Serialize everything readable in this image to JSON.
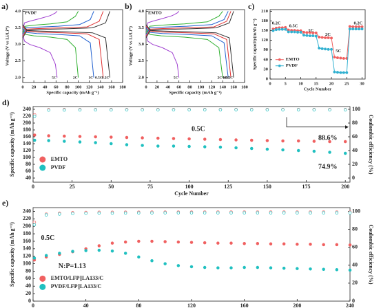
{
  "chart_data": [
    {
      "type": "line",
      "panel_label": "a)",
      "title": "PVDF",
      "x_label": "Specific capacity (mAh g⁻¹)",
      "y_label": "Voltage (V vs Li/Li⁺)",
      "xlim": [
        0,
        180
      ],
      "xticks": [
        0,
        20,
        40,
        60,
        80,
        100,
        120,
        140,
        160,
        180
      ],
      "ylim": [
        1.85,
        4.05
      ],
      "yticks": [
        {
          "value": 2,
          "label": "2.0"
        },
        2.5,
        {
          "value": 3,
          "label": "3.0"
        },
        3.5,
        {
          "value": 4,
          "label": "4.0"
        }
      ],
      "series": [
        {
          "name": "5C",
          "color": "#a040d0",
          "x": [
            0,
            3.1,
            12.4,
            31,
            49.6,
            58.9,
            62
          ],
          "charge": [
            3.4,
            3.65,
            3.7,
            3.78,
            3.87,
            3.95,
            4.0
          ],
          "discharge": [
            3.3,
            3.1,
            3.0,
            2.9,
            2.75,
            2.4,
            2.0
          ]
        },
        {
          "name": "2C",
          "color": "#30b030",
          "x": [
            0,
            5,
            20,
            50,
            80,
            95,
            100
          ],
          "charge": [
            3.35,
            3.55,
            3.58,
            3.62,
            3.68,
            3.85,
            4.0
          ],
          "discharge": [
            3.45,
            3.3,
            3.26,
            3.22,
            3.15,
            2.9,
            2.0
          ]
        },
        {
          "name": "1C",
          "color": "#2060d0",
          "x": [
            0,
            6.4,
            25.6,
            64,
            102.4,
            121.6,
            128
          ],
          "charge": [
            3.3,
            3.5,
            3.52,
            3.55,
            3.6,
            3.75,
            4.0
          ],
          "discharge": [
            3.5,
            3.36,
            3.33,
            3.3,
            3.26,
            3.05,
            2.0
          ]
        },
        {
          "name": "0.5C",
          "color": "#e03030",
          "x": [
            0,
            7.3,
            29,
            72.5,
            116,
            137.8,
            145
          ],
          "charge": [
            3.25,
            3.46,
            3.48,
            3.5,
            3.53,
            3.7,
            4.0
          ],
          "discharge": [
            3.55,
            3.4,
            3.37,
            3.35,
            3.32,
            3.15,
            2.0
          ]
        },
        {
          "name": "0.2C",
          "color": "#333333",
          "x": [
            0,
            7.9,
            31.4,
            78.5,
            125.6,
            149.2,
            157
          ],
          "charge": [
            3.2,
            3.43,
            3.45,
            3.47,
            3.5,
            3.65,
            4.0
          ],
          "discharge": [
            3.6,
            3.42,
            3.4,
            3.38,
            3.35,
            3.2,
            2.0
          ]
        }
      ]
    },
    {
      "type": "line",
      "panel_label": "b)",
      "title": "EMTO",
      "x_label": "Specific capacity (mAh g⁻¹)",
      "y_label": "Voltage (V vs Li/Li⁺)",
      "xlim": [
        0,
        180
      ],
      "xticks": [
        0,
        20,
        40,
        60,
        80,
        100,
        120,
        140,
        160,
        180
      ],
      "ylim": [
        1.85,
        4.05
      ],
      "yticks": [
        {
          "value": 2,
          "label": "2.0"
        },
        2.5,
        {
          "value": 3,
          "label": "3.0"
        },
        3.5,
        {
          "value": 4,
          "label": "4.0"
        }
      ],
      "series": [
        {
          "name": "5C",
          "color": "#a040d0",
          "x": [
            0,
            3,
            12,
            30,
            48,
            57,
            60
          ],
          "charge": [
            3.4,
            3.65,
            3.7,
            3.78,
            3.87,
            3.95,
            4.0
          ],
          "discharge": [
            3.3,
            3.1,
            3.0,
            2.9,
            2.75,
            2.4,
            2.0
          ]
        },
        {
          "name": "2C",
          "color": "#30b030",
          "x": [
            0,
            7,
            28,
            70,
            112,
            133,
            140
          ],
          "charge": [
            3.35,
            3.55,
            3.58,
            3.62,
            3.68,
            3.85,
            4.0
          ],
          "discharge": [
            3.45,
            3.3,
            3.26,
            3.22,
            3.15,
            2.9,
            2.0
          ]
        },
        {
          "name": "1C",
          "color": "#2060d0",
          "x": [
            0,
            7.5,
            30,
            75,
            120,
            142.5,
            150
          ],
          "charge": [
            3.3,
            3.5,
            3.52,
            3.55,
            3.6,
            3.75,
            4.0
          ],
          "discharge": [
            3.5,
            3.36,
            3.33,
            3.3,
            3.26,
            3.05,
            2.0
          ]
        },
        {
          "name": "0.5C",
          "color": "#e03030",
          "x": [
            0,
            7.8,
            31,
            77.5,
            124,
            147.3,
            155
          ],
          "charge": [
            3.25,
            3.46,
            3.48,
            3.5,
            3.53,
            3.7,
            4.0
          ],
          "discharge": [
            3.55,
            3.4,
            3.37,
            3.35,
            3.32,
            3.15,
            2.0
          ]
        },
        {
          "name": "0.2C",
          "color": "#333333",
          "x": [
            0,
            8,
            32,
            80,
            128,
            152,
            160
          ],
          "charge": [
            3.2,
            3.43,
            3.45,
            3.47,
            3.5,
            3.65,
            4.0
          ],
          "discharge": [
            3.6,
            3.42,
            3.4,
            3.38,
            3.35,
            3.2,
            2.0
          ]
        }
      ]
    },
    {
      "type": "line",
      "panel_label": "c)",
      "x_label": "Cycle Number",
      "y_label": "Specific capacity(mAh g⁻¹)",
      "xlim": [
        0,
        31
      ],
      "xticks": [
        0,
        5,
        10,
        15,
        20,
        25,
        30
      ],
      "ylim": [
        0,
        215
      ],
      "yticks": [
        0,
        30,
        60,
        90,
        120,
        150,
        180,
        210
      ],
      "x": [
        1,
        2,
        3,
        4,
        5,
        6,
        7,
        8,
        9,
        10,
        11,
        12,
        13,
        14,
        15,
        16,
        17,
        18,
        19,
        20,
        21,
        22,
        23,
        24,
        25,
        26,
        27,
        28,
        29,
        30
      ],
      "legend": true,
      "annotations": [
        "0.2C",
        "0.5C",
        "1C",
        "2C",
        "5C",
        "0.2C"
      ],
      "series": [
        {
          "name": "EMTO",
          "color": "#f06060",
          "marker": "circle",
          "values": [
            155,
            158,
            159,
            159,
            160,
            152,
            151,
            151,
            150,
            150,
            145,
            144,
            144,
            143,
            143,
            130,
            129,
            128,
            128,
            127,
            68,
            66,
            65,
            64,
            64,
            163,
            162,
            162,
            162,
            162
          ]
        },
        {
          "name": "PVDF",
          "color": "#30b0d0",
          "marker": "circle",
          "values": [
            150,
            153,
            154,
            154,
            154,
            146,
            146,
            146,
            145,
            145,
            136,
            135,
            134,
            134,
            133,
            96,
            94,
            93,
            92,
            92,
            22,
            21,
            20,
            20,
            20,
            155,
            155,
            155,
            155,
            155
          ]
        }
      ]
    },
    {
      "type": "line",
      "panel_label": "d)",
      "x_label": "Cycle Number",
      "y_label": "Specific capacity (mAh g⁻¹)",
      "y2_label": "Coulombic efficiency (%)",
      "xlim": [
        0,
        203
      ],
      "xticks": [
        0,
        25,
        50,
        75,
        100,
        125,
        150,
        175,
        200
      ],
      "ylim": [
        28,
        248
      ],
      "yticks": [
        40,
        60,
        80,
        100,
        120,
        140,
        160,
        180,
        200,
        220,
        240
      ],
      "y2lim": [
        -6,
        104
      ],
      "y2ticks": [
        0,
        20,
        40,
        60,
        80,
        100
      ],
      "x": [
        1,
        10,
        20,
        30,
        40,
        50,
        60,
        70,
        80,
        90,
        100,
        110,
        120,
        130,
        140,
        150,
        160,
        170,
        180,
        190,
        200
      ],
      "legend": true,
      "annotations": [
        "0.5C",
        "88.6%",
        "74.9%"
      ],
      "series": [
        {
          "name": "EMTO",
          "color": "#f06060",
          "marker": "circle",
          "line": false,
          "values": [
            165,
            163,
            162,
            161,
            160,
            159,
            158,
            157,
            156,
            155,
            154,
            153,
            152,
            151,
            150,
            149,
            148,
            148,
            147,
            146,
            146
          ]
        },
        {
          "name": "PVDF",
          "color": "#20c0c0",
          "marker": "circle",
          "line": false,
          "values": [
            150,
            149,
            147,
            145,
            143,
            140,
            137,
            135,
            133,
            133,
            132,
            131,
            130,
            128,
            126,
            124,
            122,
            120,
            118,
            115,
            112
          ]
        },
        {
          "color": "#f06060",
          "marker": "open-circle",
          "line": false,
          "axis": "y2",
          "values": [
            92,
            99.5,
            99.6,
            99.6,
            99.6,
            99.7,
            99.7,
            99.7,
            99.7,
            99.7,
            99.8,
            99.8,
            99.8,
            99.8,
            99.8,
            99.8,
            99.8,
            99.8,
            99.8,
            99.8,
            99.8
          ]
        },
        {
          "color": "#20c0c0",
          "marker": "open-circle",
          "line": false,
          "axis": "y2",
          "values": [
            90,
            98.8,
            99,
            99.1,
            99.2,
            99.2,
            99.3,
            99.3,
            99.3,
            99.3,
            99.4,
            99.4,
            99.4,
            99.4,
            99.4,
            99.4,
            99.4,
            99.4,
            99.4,
            99.4,
            99.4
          ]
        }
      ]
    },
    {
      "type": "line",
      "panel_label": "e)",
      "x_label": "Cycle Number",
      "y_label": "Specific capacity (mAh g⁻¹)",
      "y2_label": "Coulombic efficiency (%)",
      "xlim": [
        0,
        240
      ],
      "xticks": [
        0,
        40,
        80,
        120,
        160,
        200,
        240
      ],
      "ylim": [
        0,
        250
      ],
      "yticks": [
        0,
        20,
        40,
        60,
        80,
        100,
        120,
        140,
        160,
        180,
        200,
        220,
        240
      ],
      "y2lim": [
        0,
        104.17
      ],
      "y2ticks": [
        0,
        20,
        40,
        60,
        80,
        100
      ],
      "x": [
        1,
        10,
        20,
        30,
        40,
        50,
        60,
        70,
        80,
        90,
        100,
        110,
        120,
        130,
        140,
        150,
        160,
        170,
        180,
        190,
        200,
        210,
        220,
        230,
        240
      ],
      "legend": true,
      "annotations": [
        "0.5C",
        "N:P=1.13"
      ],
      "series": [
        {
          "name": "EMTO/LFP||LA133/C",
          "color": "#f06060",
          "marker": "circle",
          "line": false,
          "values": [
            110,
            118,
            125,
            132,
            140,
            148,
            155,
            158,
            160,
            160,
            159,
            158,
            157,
            156,
            155,
            155,
            154,
            154,
            153,
            153,
            152,
            152,
            151,
            151,
            150
          ]
        },
        {
          "name": "PVDF/LFP||LA133/C",
          "color": "#20c0c0",
          "marker": "circle",
          "line": false,
          "values": [
            115,
            122,
            128,
            133,
            135,
            136,
            134,
            128,
            118,
            108,
            100,
            95,
            92,
            90,
            89,
            89,
            90,
            90,
            89,
            88,
            87,
            86,
            85,
            84,
            83
          ]
        },
        {
          "color": "#f06060",
          "marker": "open-circle",
          "line": false,
          "axis": "y2",
          "values": [
            88,
            97,
            98,
            98.5,
            98.8,
            99,
            99,
            99.1,
            99.1,
            99.2,
            99.2,
            99.2,
            99.2,
            99.3,
            99.3,
            99.3,
            99.3,
            99.3,
            99.3,
            99.3,
            99.3,
            99.3,
            99.3,
            99.3,
            99.3
          ]
        },
        {
          "color": "#20c0c0",
          "marker": "open-circle",
          "line": false,
          "axis": "y2",
          "values": [
            85,
            96,
            97,
            97.5,
            97.8,
            98,
            98,
            98.1,
            98.2,
            98.2,
            98.3,
            98.3,
            98.3,
            98.3,
            98.3,
            98.3,
            98.3,
            98.3,
            98.3,
            98.3,
            98.3,
            98.3,
            98.3,
            98.3,
            98.3
          ]
        }
      ]
    }
  ]
}
